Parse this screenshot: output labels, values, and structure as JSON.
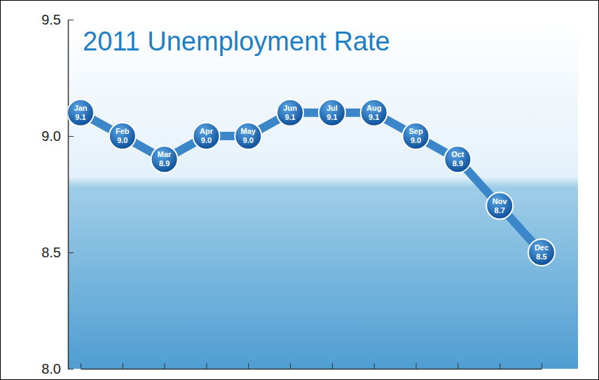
{
  "chart_data": {
    "type": "line",
    "title": "2011 Unemployment Rate",
    "categories": [
      "Jan",
      "Feb",
      "Mar",
      "Apr",
      "May",
      "Jun",
      "Jul",
      "Aug",
      "Sep",
      "Oct",
      "Nov",
      "Dec"
    ],
    "values": [
      9.1,
      9.0,
      8.9,
      9.0,
      9.0,
      9.1,
      9.1,
      9.1,
      9.0,
      8.9,
      8.7,
      8.5
    ],
    "value_labels": [
      "9.1",
      "9.0",
      "8.9",
      "9.0",
      "9.0",
      "9.1",
      "9.1",
      "9.1",
      "9.0",
      "8.9",
      "8.7",
      "8.5"
    ],
    "color": "#3a86c8",
    "marker": "circle",
    "ylim": [
      8,
      9.5
    ],
    "yticks": [
      {
        "value": 8,
        "label": "8.0"
      },
      8.5,
      {
        "value": 9,
        "label": "9.0"
      },
      9.5
    ],
    "data_labels": true,
    "tick_labels": "y",
    "grid": false
  }
}
